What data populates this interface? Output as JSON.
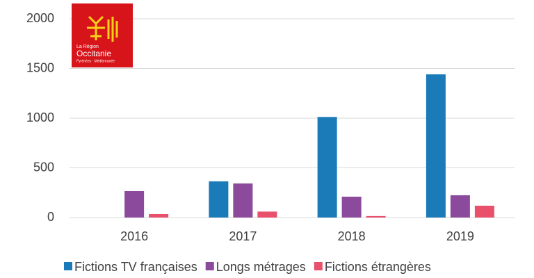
{
  "chart_data": {
    "type": "bar",
    "logo": {
      "line1": "La Région",
      "line2": "Occitanie",
      "line3": "Pyrénées · Méditerranée"
    },
    "categories": [
      "2016",
      "2017",
      "2018",
      "2019"
    ],
    "series": [
      {
        "name": "Fictions TV françaises",
        "color": "#1b7bb8",
        "values": [
          0,
          364,
          1012,
          1441
        ]
      },
      {
        "name": "Longs métrages",
        "color": "#8b4a9c",
        "values": [
          266,
          343,
          210,
          224
        ]
      },
      {
        "name": "Fictions étrangères",
        "color": "#e8506c",
        "values": [
          35,
          60,
          15,
          119
        ]
      }
    ],
    "ylim": [
      0,
      2000
    ],
    "yticks": [
      0,
      500,
      1000,
      1500,
      2000
    ],
    "grid": true,
    "legend": "bottom"
  }
}
